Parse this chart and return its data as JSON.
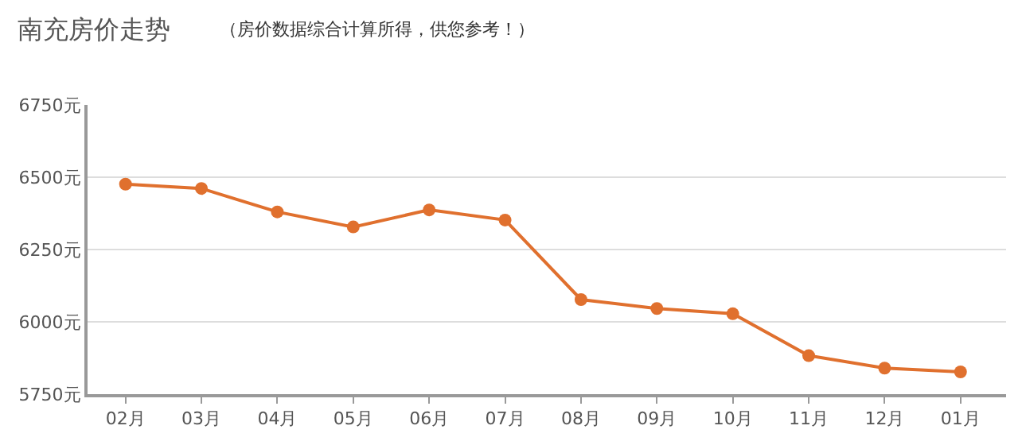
{
  "chart_data": {
    "type": "line",
    "title": "南充房价走势",
    "subtitle": "（房价数据综合计算所得，供您参考！）",
    "categories": [
      "02月",
      "03月",
      "04月",
      "05月",
      "06月",
      "07月",
      "08月",
      "09月",
      "10月",
      "11月",
      "12月",
      "01月"
    ],
    "series": [
      {
        "color": "#e0702e",
        "values": [
          6476,
          6461,
          6380,
          6328,
          6387,
          6352,
          6077,
          6046,
          6028,
          5883,
          5840,
          5827
        ]
      }
    ],
    "ylim": [
      5750,
      6750
    ],
    "yticks": [
      {
        "value": 5750,
        "label": "5750元"
      },
      {
        "value": 6000,
        "label": "6000元"
      },
      {
        "value": 6250,
        "label": "6250元"
      },
      {
        "value": 6500,
        "label": "6500元"
      },
      {
        "value": 6750,
        "label": "6750元"
      }
    ],
    "grid": "y",
    "legend": false,
    "marker": "circle",
    "line_style": "solid"
  }
}
